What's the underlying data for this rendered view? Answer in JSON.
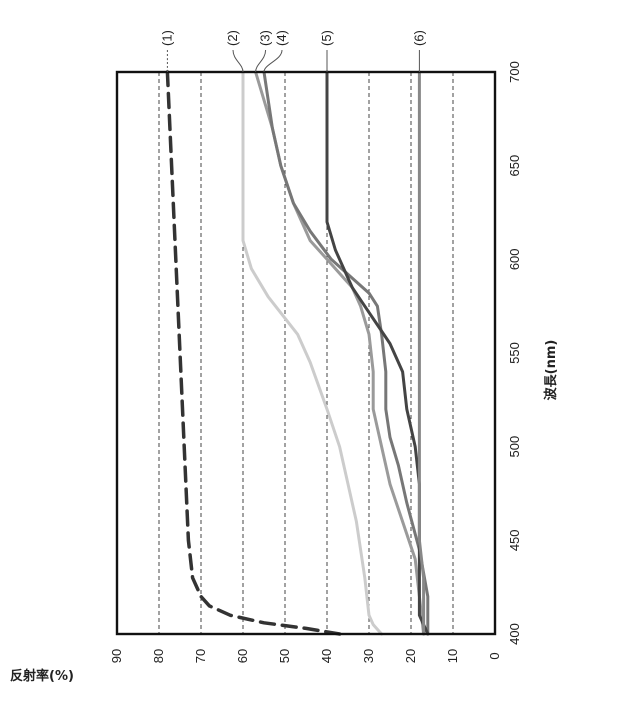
{
  "chart_data": {
    "type": "line",
    "title": "",
    "xlabel": "波長(nm)",
    "ylabel": "反射率(%)",
    "xlim": [
      400,
      700
    ],
    "ylim": [
      0,
      90
    ],
    "x_ticks": [
      400,
      450,
      500,
      550,
      600,
      650,
      700
    ],
    "y_ticks": [
      0,
      10,
      20,
      30,
      40,
      50,
      60,
      70,
      80,
      90
    ],
    "grid": "horizontal dashed at 10,20,30,40,50,60,70,80",
    "orientation": "figure rotated 90 degrees clockwise",
    "series": [
      {
        "name": "(1)",
        "style": "dashed",
        "color": "#333333",
        "points": [
          [
            400,
            37
          ],
          [
            403,
            45
          ],
          [
            406,
            55
          ],
          [
            410,
            63
          ],
          [
            415,
            68
          ],
          [
            420,
            70
          ],
          [
            430,
            72
          ],
          [
            450,
            73
          ],
          [
            500,
            74
          ],
          [
            550,
            75
          ],
          [
            600,
            76
          ],
          [
            650,
            77
          ],
          [
            700,
            78
          ]
        ]
      },
      {
        "name": "(2)",
        "style": "solid",
        "color": "#cccccc",
        "points": [
          [
            400,
            27
          ],
          [
            405,
            29
          ],
          [
            410,
            30
          ],
          [
            430,
            31
          ],
          [
            460,
            33
          ],
          [
            480,
            35
          ],
          [
            500,
            37
          ],
          [
            520,
            40
          ],
          [
            545,
            44
          ],
          [
            560,
            47
          ],
          [
            580,
            54
          ],
          [
            595,
            58
          ],
          [
            610,
            60
          ],
          [
            700,
            60
          ]
        ]
      },
      {
        "name": "(3)",
        "style": "solid",
        "color": "#9a9a9a",
        "points": [
          [
            400,
            17
          ],
          [
            420,
            18
          ],
          [
            440,
            19
          ],
          [
            460,
            22
          ],
          [
            480,
            25
          ],
          [
            500,
            27
          ],
          [
            520,
            29
          ],
          [
            540,
            29
          ],
          [
            560,
            30
          ],
          [
            575,
            32
          ],
          [
            580,
            33
          ],
          [
            585,
            34
          ],
          [
            590,
            36
          ],
          [
            600,
            40
          ],
          [
            610,
            44
          ],
          [
            630,
            48
          ],
          [
            650,
            51
          ],
          [
            670,
            53
          ],
          [
            700,
            57
          ]
        ]
      },
      {
        "name": "(4)",
        "style": "solid",
        "color": "#777777",
        "points": [
          [
            400,
            16
          ],
          [
            420,
            16
          ],
          [
            445,
            18
          ],
          [
            470,
            21
          ],
          [
            490,
            23
          ],
          [
            505,
            25
          ],
          [
            520,
            26
          ],
          [
            540,
            26
          ],
          [
            560,
            27
          ],
          [
            575,
            28
          ],
          [
            582,
            30
          ],
          [
            590,
            34
          ],
          [
            600,
            39
          ],
          [
            615,
            44
          ],
          [
            630,
            48
          ],
          [
            650,
            51
          ],
          [
            670,
            53
          ],
          [
            700,
            55
          ]
        ]
      },
      {
        "name": "(5)",
        "style": "solid",
        "color": "#444444",
        "points": [
          [
            400,
            16
          ],
          [
            410,
            18
          ],
          [
            420,
            18
          ],
          [
            450,
            18
          ],
          [
            480,
            18
          ],
          [
            500,
            19
          ],
          [
            520,
            21
          ],
          [
            540,
            22
          ],
          [
            555,
            25
          ],
          [
            565,
            28
          ],
          [
            575,
            31
          ],
          [
            585,
            34
          ],
          [
            595,
            36
          ],
          [
            605,
            38
          ],
          [
            620,
            40
          ],
          [
            650,
            40
          ],
          [
            700,
            40
          ]
        ]
      },
      {
        "name": "(6)",
        "style": "solid",
        "color": "#888888",
        "points": [
          [
            400,
            17
          ],
          [
            410,
            17
          ],
          [
            430,
            17
          ],
          [
            450,
            18
          ],
          [
            500,
            18
          ],
          [
            550,
            18
          ],
          [
            600,
            18
          ],
          [
            650,
            18
          ],
          [
            700,
            18
          ]
        ]
      }
    ]
  }
}
